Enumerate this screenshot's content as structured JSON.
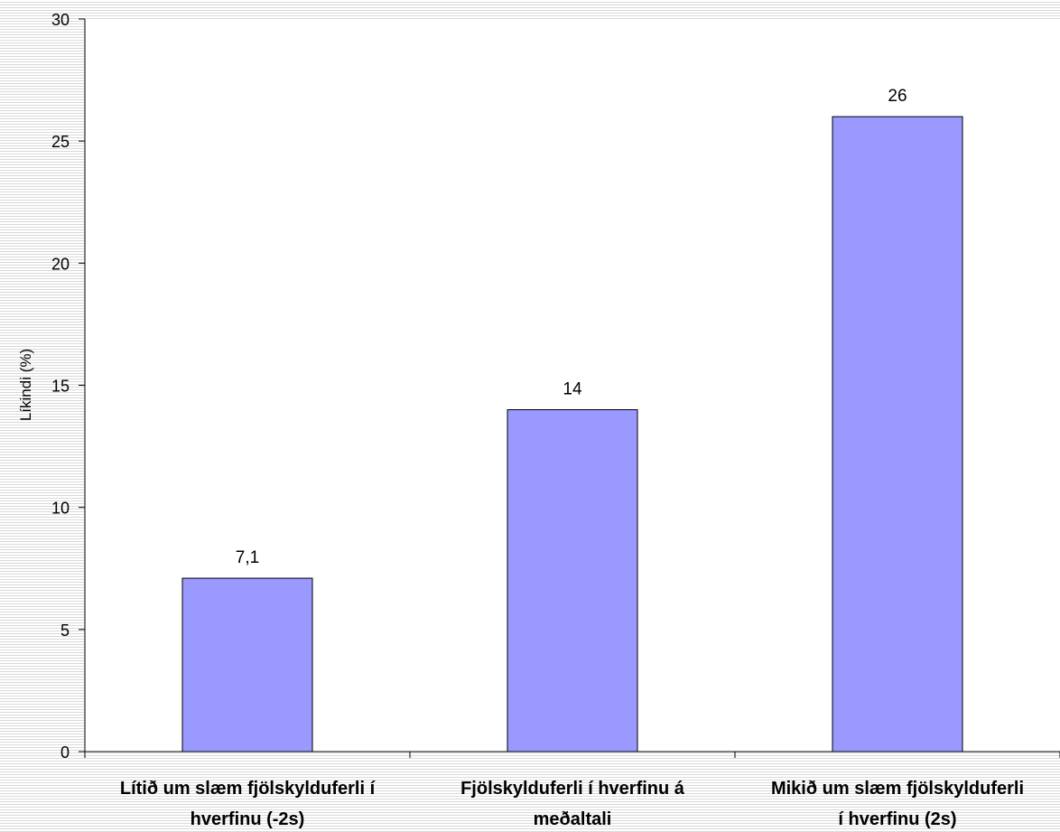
{
  "chart_data": {
    "type": "bar",
    "categories": [
      [
        "Lítið um slæm fjölskylduferli í",
        "hverfinu (-2s)"
      ],
      [
        "Fjölskylduferli í hverfinu á",
        "meðaltali"
      ],
      [
        "Mikið um slæm fjölskylduferli",
        "í hverfinu (2s)"
      ]
    ],
    "values": [
      7.1,
      14,
      26
    ],
    "data_labels": [
      "7,1",
      "14",
      "26"
    ],
    "title": "",
    "xlabel": "",
    "ylabel": "Líkindi (%)",
    "ylim": [
      0,
      30
    ],
    "yticks": [
      0,
      5,
      10,
      15,
      20,
      25,
      30
    ],
    "bar_color": "#9999ff",
    "bar_edge_color": "#000000",
    "plot_background": "#ffffff",
    "grid": false,
    "legend": "none"
  }
}
